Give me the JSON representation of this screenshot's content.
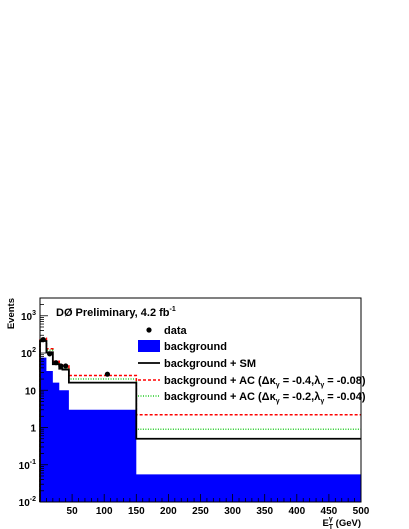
{
  "chart_data": {
    "type": "histogram",
    "title": "DØ Preliminary, 4.2 fb",
    "title_superscript": "-1",
    "xlabel": "E",
    "xlabel_sup": "γ",
    "xlabel_sub": "T",
    "xlabel_unit": " (GeV)",
    "ylabel": "Events",
    "xlim": [
      0,
      500
    ],
    "ylim": [
      0.01,
      3000
    ],
    "log_y": true,
    "x_ticks": [
      "50",
      "100",
      "150",
      "200",
      "250",
      "300",
      "350",
      "400",
      "450",
      "500"
    ],
    "y_ticks": [
      {
        "value": 0.01,
        "base": "10",
        "exp": "-2"
      },
      {
        "value": 0.1,
        "base": "10",
        "exp": "-1"
      },
      {
        "value": 1,
        "base": "1",
        "exp": ""
      },
      {
        "value": 10,
        "base": "10",
        "exp": ""
      },
      {
        "value": 100,
        "base": "10",
        "exp": "2"
      },
      {
        "value": 1000,
        "base": "10",
        "exp": "3"
      }
    ],
    "bin_edges": [
      0,
      10,
      20,
      30,
      35,
      45,
      60,
      150,
      500
    ],
    "series": [
      {
        "name": "background",
        "kind": "filled",
        "color": "#0000ff",
        "values": [
          75,
          33,
          16,
          10,
          10,
          3.0,
          3.0,
          0.055
        ]
      },
      {
        "name": "background + SM",
        "kind": "step",
        "color": "#000000",
        "values": [
          210,
          105,
          50,
          38,
          36,
          16,
          16,
          0.5
        ]
      },
      {
        "name": "background + AC (Δκγ = -0.4,λγ = -0.08)",
        "kind": "step-dashed",
        "color": "#ff0000",
        "values": [
          250,
          130,
          60,
          48,
          45,
          25,
          25,
          2.2
        ]
      },
      {
        "name": "background + AC (Δκγ = -0.2,λγ = -0.04)",
        "kind": "step-dotted",
        "color": "#22cc22",
        "values": [
          230,
          120,
          55,
          43,
          40,
          20,
          20,
          0.9
        ]
      }
    ],
    "data_points": {
      "name": "data",
      "x": [
        5,
        15,
        25,
        32.5,
        40,
        105
      ],
      "y": [
        230,
        95,
        55,
        45,
        45,
        27
      ]
    },
    "legend": {
      "placement": "top-right",
      "entries": [
        {
          "label": "data",
          "marker": "dot",
          "color": "#000000"
        },
        {
          "label": "background",
          "marker": "box",
          "color": "#0000ff"
        },
        {
          "label": "background + SM",
          "marker": "line",
          "color": "#000000"
        },
        {
          "label_prefix": "background + AC (Δκ",
          "sub1": "γ",
          "mid": " = -0.4,λ",
          "sub2": "γ",
          "suffix": " = -0.08)",
          "marker": "dashed",
          "color": "#ff0000"
        },
        {
          "label_prefix": "background + AC (Δκ",
          "sub1": "γ",
          "mid": " = -0.2,λ",
          "sub2": "γ",
          "suffix": " = -0.04)",
          "marker": "dotted",
          "color": "#22cc22"
        }
      ]
    }
  }
}
